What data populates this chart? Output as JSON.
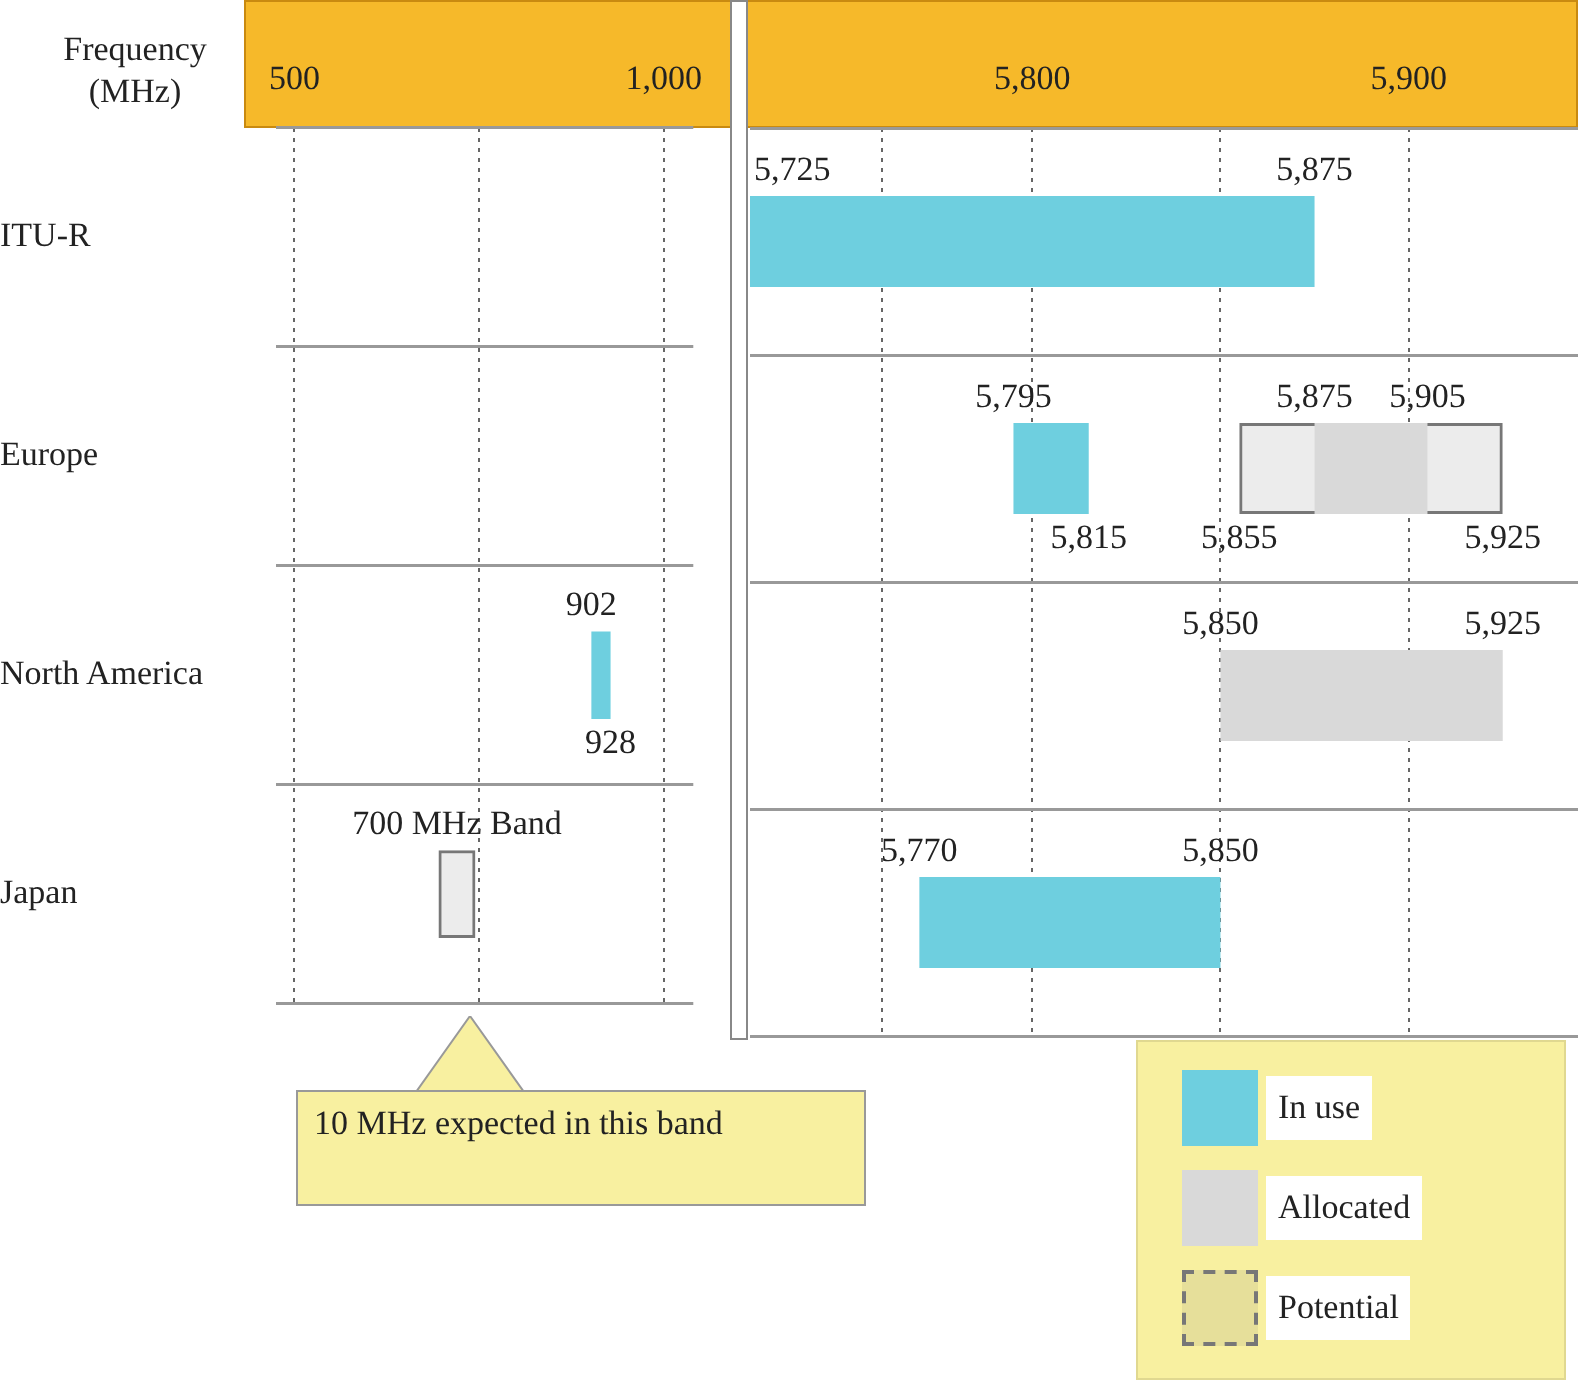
{
  "chart_data": [
    {
      "type": "bar",
      "orientation": "horizontal",
      "xlabel": "Frequency (MHz)",
      "categories": [
        "ITU-R",
        "Europe",
        "North America",
        "Japan"
      ],
      "xlim": [
        475,
        1040
      ],
      "xticks": [
        500,
        {
          "value": 750,
          "label": null
        },
        {
          "value": 1000,
          "label": "1,000"
        }
      ],
      "grid": true,
      "series": [
        {
          "color": "#6ecfdf",
          "values": [
            null,
            null,
            26,
            null
          ],
          "base": [
            null,
            null,
            902,
            null
          ]
        },
        {
          "color": "#777777",
          "line_style": "dashed",
          "values": [
            null,
            null,
            null,
            50
          ],
          "base": [
            null,
            null,
            null,
            695
          ]
        }
      ],
      "annotations": [
        {
          "text": "902",
          "x": 902,
          "y": "North America"
        },
        {
          "text": "928",
          "x": 928,
          "y": "North America"
        },
        {
          "text": "700 MHz Band",
          "x": 720,
          "y": "Japan"
        },
        "10 MHz expected in this band"
      ]
    },
    {
      "type": "bar",
      "orientation": "horizontal",
      "categories": [
        "ITU-R",
        "Europe",
        "North America",
        "Japan"
      ],
      "xlim": [
        5725,
        5945
      ],
      "xticks": [
        {
          "value": 5760,
          "label": null
        },
        {
          "value": 5800,
          "label": "5,800"
        },
        {
          "value": 5850,
          "label": null
        },
        {
          "value": 5900,
          "label": "5,900"
        }
      ],
      "grid": true,
      "tick_labels": "x",
      "legend": "bottom right",
      "series": [
        {
          "name": "In use",
          "color": "#6ecfdf",
          "values": [
            150,
            20,
            null,
            80
          ],
          "base": [
            5725,
            5795,
            null,
            5770
          ]
        },
        {
          "name": "Allocated",
          "color": "#d9d9d9",
          "values": [
            null,
            30,
            75,
            null
          ],
          "base": [
            null,
            5875,
            5850,
            null
          ]
        },
        {
          "name": "Potential",
          "color": "#777777",
          "line_style": "dashed",
          "values": [
            null,
            70,
            null,
            null
          ],
          "base": [
            null,
            5855,
            null,
            null
          ]
        }
      ],
      "annotations": [
        {
          "text": "5,725",
          "x": 5725,
          "y": "ITU-R"
        },
        {
          "text": "5,875",
          "x": 5875,
          "y": "ITU-R"
        },
        {
          "text": "5,795",
          "x": 5795,
          "y": "Europe"
        },
        {
          "text": "5,815",
          "x": 5815,
          "y": "Europe"
        },
        {
          "text": "5,875",
          "x": 5875,
          "y": "Europe"
        },
        {
          "text": "5,855",
          "x": 5855,
          "y": "Europe"
        },
        {
          "text": "5,905",
          "x": 5905,
          "y": "Europe"
        },
        {
          "text": "5,925",
          "x": 5925,
          "y": "Europe"
        },
        {
          "text": "5,850",
          "x": 5850,
          "y": "North America"
        },
        {
          "text": "5,925",
          "x": 5925,
          "y": "North America"
        },
        {
          "text": "5,770",
          "x": 5770,
          "y": "Japan"
        },
        {
          "text": "5,850",
          "x": 5850,
          "y": "Japan"
        }
      ]
    }
  ]
}
